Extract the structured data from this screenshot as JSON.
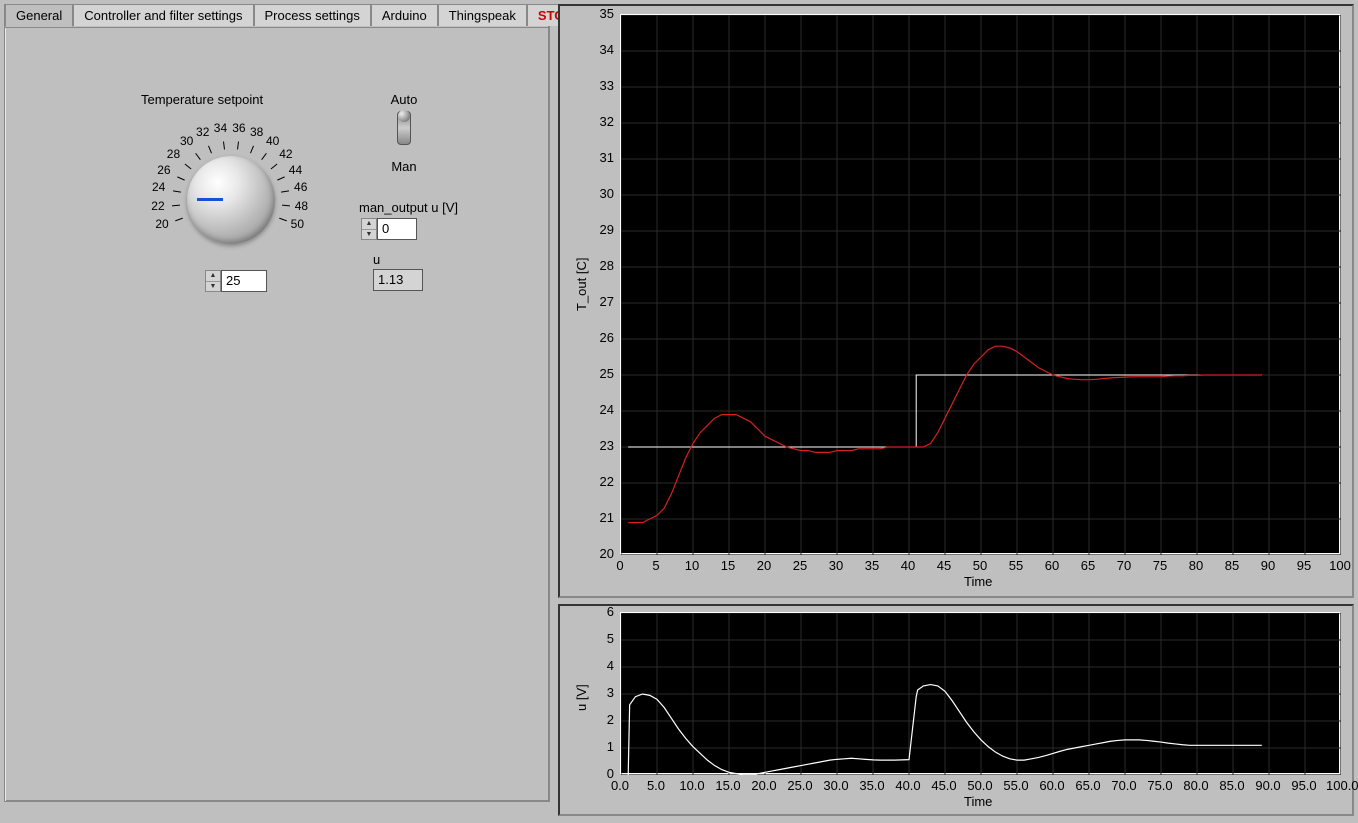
{
  "tabs": {
    "items": [
      "General",
      "Controller and filter settings",
      "Process settings",
      "Arduino",
      "Thingspeak",
      "STOP"
    ],
    "active_index": 0,
    "stop_index": 5,
    "stop_color": "#d00000"
  },
  "controls": {
    "dial": {
      "label": "Temperature setpoint",
      "min": 20,
      "max": 50,
      "tick_labels": [
        "20",
        "22",
        "24",
        "26",
        "28",
        "30",
        "32",
        "34",
        "36",
        "38",
        "40",
        "42",
        "44",
        "46",
        "48",
        "50"
      ],
      "value": 25,
      "pointer_color": "#1a4fd6",
      "value_display": "25"
    },
    "mode_toggle": {
      "top_label": "Auto",
      "bottom_label": "Man",
      "state": "Auto"
    },
    "man_output": {
      "label": "man_output u [V]",
      "value": "0"
    },
    "u_indicator": {
      "label": "u",
      "value": "1.13"
    }
  },
  "chart_tout": {
    "type": "line",
    "background_color": "#000000",
    "grid_color": "#2a2a2a",
    "border_color": "#ffffff",
    "tick_fontsize": 13,
    "ylabel": "T_out [C]",
    "xlabel": "Time",
    "xlim": [
      0,
      100
    ],
    "xtick_step": 5,
    "ylim": [
      20,
      35
    ],
    "ytick_step": 1,
    "series": [
      {
        "name": "setpoint",
        "color": "#ffffff",
        "line_width": 1,
        "x": [
          1,
          41,
          41,
          89
        ],
        "y": [
          23,
          23,
          25,
          25
        ]
      },
      {
        "name": "T_out",
        "color": "#d82020",
        "line_width": 1.2,
        "x": [
          1,
          2,
          3,
          4,
          5,
          6,
          7,
          8,
          9,
          10,
          11,
          12,
          13,
          14,
          15,
          16,
          17,
          18,
          19,
          20,
          21,
          22,
          23,
          24,
          25,
          26,
          27,
          28,
          29,
          30,
          31,
          32,
          33,
          34,
          35,
          36,
          37,
          38,
          39,
          40,
          41,
          42,
          43,
          44,
          45,
          46,
          47,
          48,
          49,
          50,
          51,
          52,
          53,
          54,
          55,
          56,
          57,
          58,
          59,
          60,
          61,
          62,
          63,
          64,
          65,
          66,
          67,
          68,
          69,
          70,
          71,
          72,
          73,
          74,
          75,
          76,
          77,
          78,
          79,
          80,
          81,
          82,
          83,
          84,
          85,
          86,
          87,
          88,
          89
        ],
        "y": [
          20.9,
          20.9,
          20.9,
          21.0,
          21.1,
          21.3,
          21.7,
          22.2,
          22.7,
          23.1,
          23.4,
          23.6,
          23.8,
          23.9,
          23.9,
          23.9,
          23.8,
          23.7,
          23.5,
          23.3,
          23.2,
          23.1,
          23.0,
          22.95,
          22.9,
          22.9,
          22.85,
          22.85,
          22.85,
          22.9,
          22.9,
          22.9,
          22.95,
          22.95,
          22.95,
          22.95,
          23.0,
          23.0,
          23.0,
          23.0,
          23.0,
          23.0,
          23.1,
          23.4,
          23.8,
          24.2,
          24.6,
          25.0,
          25.3,
          25.5,
          25.7,
          25.8,
          25.8,
          25.75,
          25.65,
          25.5,
          25.35,
          25.2,
          25.1,
          25.0,
          24.95,
          24.9,
          24.88,
          24.87,
          24.87,
          24.88,
          24.9,
          24.92,
          24.93,
          24.94,
          24.95,
          24.95,
          24.95,
          24.95,
          24.95,
          24.97,
          24.98,
          24.98,
          24.99,
          24.99,
          25.0,
          25.0,
          25.0,
          25.0,
          25.0,
          25.0,
          25.0,
          25.0,
          25.0
        ]
      }
    ]
  },
  "chart_u": {
    "type": "line",
    "background_color": "#000000",
    "grid_color": "#2a2a2a",
    "border_color": "#ffffff",
    "tick_fontsize": 13,
    "ylabel": "u  [V]",
    "xlabel": "Time",
    "xlim": [
      0,
      100
    ],
    "xtick_step": 5,
    "x_decimals": 1,
    "ylim": [
      0,
      6
    ],
    "ytick_step": 1,
    "series": [
      {
        "name": "u",
        "color": "#ffffff",
        "line_width": 1.2,
        "x": [
          1,
          1.2,
          2,
          3,
          4,
          5,
          6,
          7,
          8,
          9,
          10,
          11,
          12,
          13,
          14,
          15,
          16,
          17,
          18,
          18.5,
          19,
          20,
          21,
          22,
          23,
          24,
          25,
          26,
          27,
          28,
          29,
          30,
          31,
          32,
          33,
          34,
          35,
          36,
          37,
          38,
          39,
          40,
          41,
          41.2,
          42,
          43,
          44,
          45,
          46,
          47,
          48,
          49,
          50,
          51,
          52,
          53,
          54,
          55,
          56,
          57,
          58,
          59,
          60,
          61,
          62,
          63,
          64,
          65,
          66,
          67,
          68,
          69,
          70,
          71,
          72,
          73,
          74,
          75,
          76,
          77,
          78,
          79,
          80,
          81,
          82,
          83,
          84,
          85,
          86,
          87,
          88,
          89
        ],
        "y": [
          0,
          2.6,
          2.9,
          3.0,
          2.95,
          2.8,
          2.5,
          2.1,
          1.7,
          1.35,
          1.05,
          0.8,
          0.55,
          0.35,
          0.2,
          0.1,
          0.05,
          0.0,
          0.0,
          0.0,
          0.05,
          0.1,
          0.15,
          0.2,
          0.25,
          0.3,
          0.35,
          0.4,
          0.45,
          0.5,
          0.55,
          0.58,
          0.6,
          0.62,
          0.6,
          0.58,
          0.56,
          0.55,
          0.55,
          0.55,
          0.56,
          0.57,
          2.9,
          3.15,
          3.3,
          3.35,
          3.3,
          3.1,
          2.75,
          2.35,
          1.95,
          1.6,
          1.3,
          1.05,
          0.85,
          0.7,
          0.6,
          0.55,
          0.55,
          0.6,
          0.65,
          0.72,
          0.8,
          0.88,
          0.95,
          1.0,
          1.05,
          1.1,
          1.15,
          1.2,
          1.25,
          1.28,
          1.3,
          1.3,
          1.3,
          1.28,
          1.25,
          1.22,
          1.18,
          1.15,
          1.12,
          1.1,
          1.1,
          1.1,
          1.1,
          1.1,
          1.1,
          1.1,
          1.1,
          1.1,
          1.1,
          1.1
        ]
      }
    ]
  },
  "layout": {
    "bg_color": "#bfbfbf",
    "panel_border": "#888888"
  }
}
